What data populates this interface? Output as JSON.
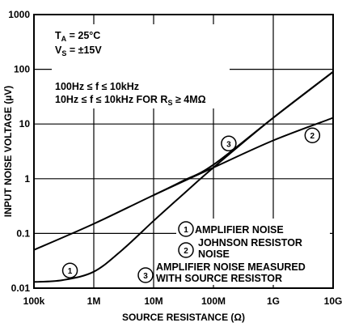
{
  "chart_data": {
    "type": "line",
    "title": "",
    "xlabel": "SOURCE RESISTANCE (Ω)",
    "ylabel": "INPUT NOISE VOLTAGE (µV)",
    "xscale": "log",
    "yscale": "log",
    "xlim": [
      100000,
      10000000000
    ],
    "ylim": [
      0.01,
      1000
    ],
    "grid": true,
    "x_ticks": [
      "100k",
      "1M",
      "10M",
      "100M",
      "1G",
      "10G"
    ],
    "y_ticks": [
      "1000",
      "100",
      "10",
      "1",
      "0.1",
      "0.01"
    ],
    "annotations": {
      "ta_main": "T",
      "ta_sub": "A",
      "ta_rest": " = 25°C",
      "vs_main": "V",
      "vs_sub": "S",
      "vs_rest": " = ±15V",
      "freq_line1": "100Hz ≤ f ≤ 10kHz",
      "freq_line2_a": "10Hz ≤ f ≤ 10kHz FOR R",
      "freq_line2_sub": "S",
      "freq_line2_b": " ≥ 4MΩ"
    },
    "legend": [
      {
        "marker": "1",
        "lines": [
          "AMPLIFIER NOISE"
        ]
      },
      {
        "marker": "2",
        "lines": [
          "JOHNSON RESISTOR",
          "NOISE"
        ]
      },
      {
        "marker": "3",
        "lines": [
          "AMPLIFIER NOISE MEASURED",
          "WITH SOURCE RESISTOR"
        ]
      }
    ],
    "series": [
      {
        "marker": "1",
        "x": [
          100000,
          300000,
          1000000,
          3000000,
          10000000,
          30000000,
          100000000,
          1000000000,
          10000000000
        ],
        "y": [
          0.013,
          0.014,
          0.02,
          0.05,
          0.17,
          0.5,
          1.6,
          13,
          90
        ]
      },
      {
        "marker": "2",
        "x": [
          100000,
          1000000,
          10000000,
          100000000,
          1000000000,
          10000000000
        ],
        "y": [
          0.05,
          0.15,
          0.5,
          1.6,
          5,
          13
        ]
      },
      {
        "marker": "3",
        "x": [
          10000000,
          30000000,
          100000000,
          1000000000,
          10000000000
        ],
        "y": [
          0.5,
          0.9,
          1.8,
          13,
          90
        ]
      }
    ],
    "series_markers": [
      {
        "series": "1",
        "x": 400000,
        "y": 0.021
      },
      {
        "series": "2",
        "x": 4500000000,
        "y": 6.2
      },
      {
        "series": "3",
        "x": 180000000,
        "y": 4.4
      }
    ]
  }
}
